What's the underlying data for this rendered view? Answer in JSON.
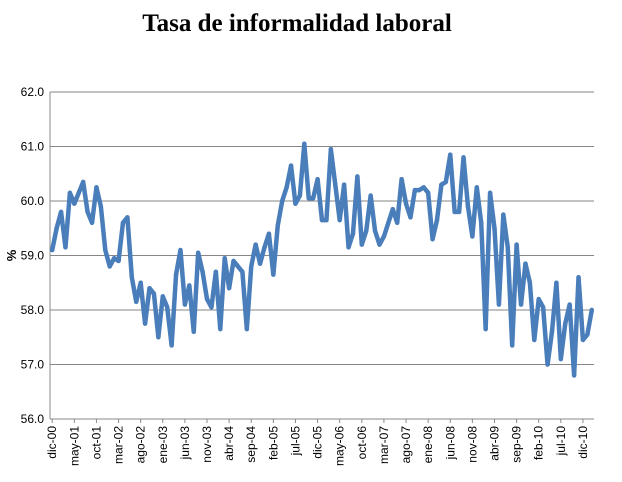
{
  "chart_data": {
    "type": "line",
    "title": "Tasa de informalidad laboral",
    "xlabel": "",
    "ylabel": "%",
    "ylim": [
      56.0,
      62.0
    ],
    "y_ticks": [
      "56.0",
      "57.0",
      "58.0",
      "59.0",
      "60.0",
      "61.0",
      "62.0"
    ],
    "x_tick_labels": [
      "dic-00",
      "may-01",
      "oct-01",
      "mar-02",
      "ago-02",
      "ene-03",
      "jun-03",
      "nov-03",
      "abr-04",
      "sep-04",
      "feb-05",
      "jul-05",
      "dic-05",
      "may-06",
      "oct-06",
      "mar-07",
      "ago-07",
      "ene-08",
      "jun-08",
      "nov-08",
      "abr-09",
      "sep-09",
      "feb-10",
      "jul-10",
      "dic-10"
    ],
    "grid": "horizontal",
    "line_color": "#4a7ebb",
    "series": [
      {
        "values": [
          59.1,
          59.5,
          59.8,
          59.15,
          60.15,
          59.95,
          60.15,
          60.35,
          59.8,
          59.6,
          60.25,
          59.9,
          59.1,
          58.8,
          58.95,
          58.9,
          59.6,
          59.7,
          58.6,
          58.15,
          58.5,
          57.75,
          58.4,
          58.3,
          57.5,
          58.25,
          58.05,
          57.35,
          58.65,
          59.1,
          58.1,
          58.45,
          57.6,
          59.05,
          58.7,
          58.2,
          58.05,
          58.7,
          57.65,
          58.95,
          58.4,
          58.9,
          58.8,
          58.7,
          57.65,
          58.8,
          59.2,
          58.85,
          59.15,
          59.4,
          58.65,
          59.55,
          60.0,
          60.25,
          60.65,
          59.95,
          60.1,
          61.05,
          60.05,
          60.05,
          60.4,
          59.65,
          59.65,
          60.95,
          60.3,
          59.65,
          60.3,
          59.15,
          59.4,
          60.45,
          59.2,
          59.45,
          60.1,
          59.45,
          59.2,
          59.35,
          59.6,
          59.85,
          59.6,
          60.4,
          59.95,
          59.7,
          60.2,
          60.2,
          60.25,
          60.15,
          59.3,
          59.65,
          60.3,
          60.35,
          60.85,
          59.8,
          59.8,
          60.8,
          59.9,
          59.35,
          60.25,
          59.6,
          57.65,
          60.15,
          59.5,
          58.1,
          59.75,
          59.15,
          57.35,
          59.2,
          58.1,
          58.85,
          58.5,
          57.45,
          58.2,
          58.05,
          57.0,
          57.6,
          58.5,
          57.1,
          57.75,
          58.1,
          56.8,
          58.6,
          57.45,
          57.55,
          58.0
        ]
      }
    ]
  }
}
